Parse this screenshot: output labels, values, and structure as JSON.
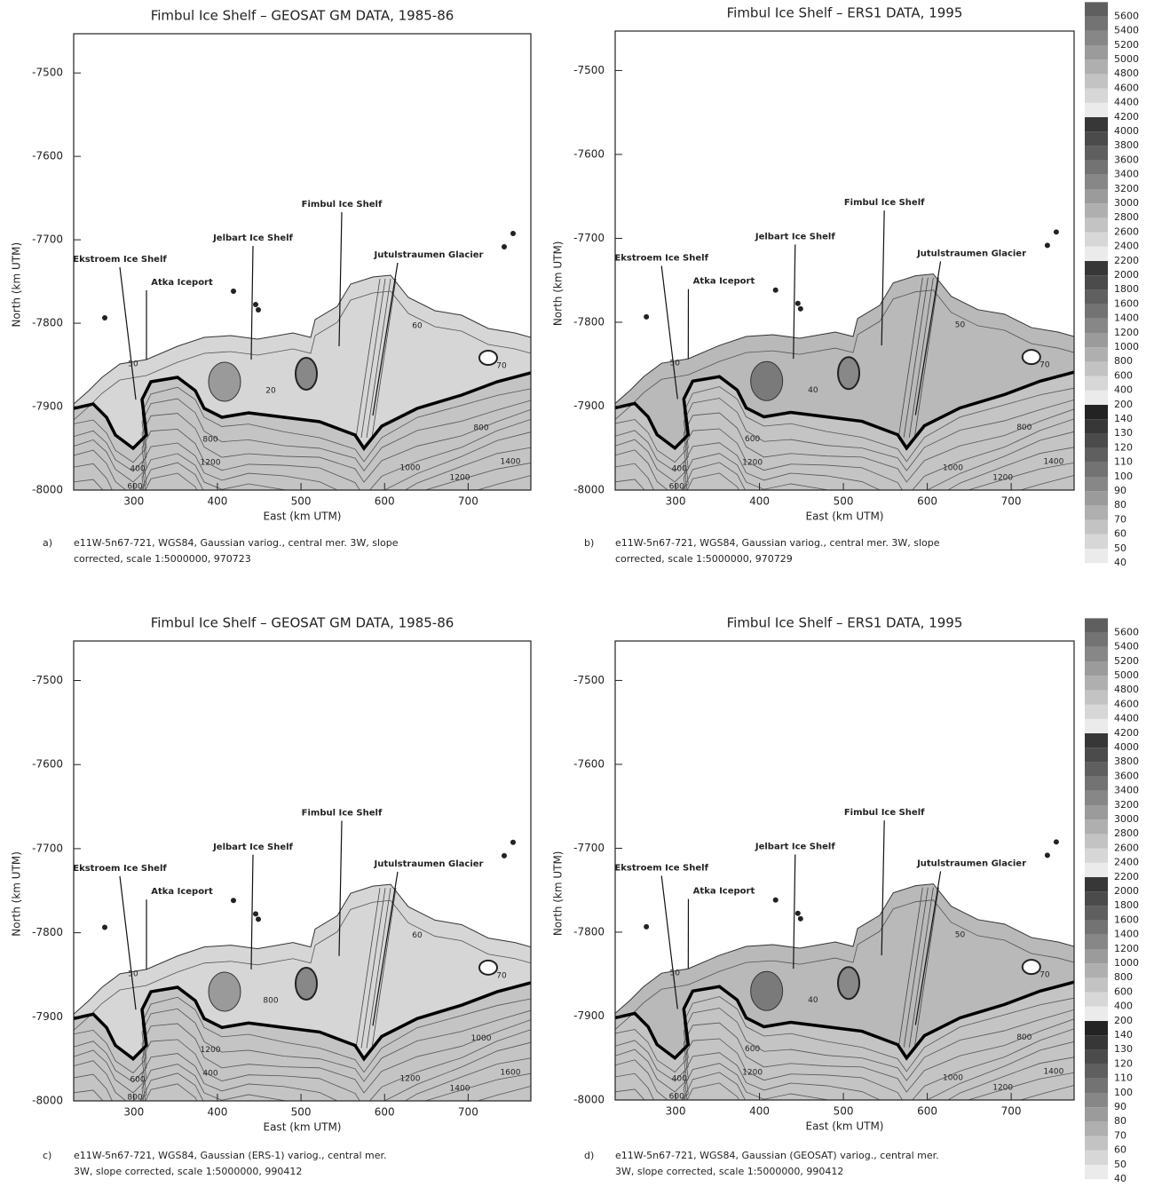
{
  "chart_data": [
    {
      "type": "contour",
      "panel_label": "a)",
      "title": "Fimbul Ice Shelf – GEOSAT GM DATA, 1985-86",
      "xlabel": "East (km UTM)",
      "ylabel": "North (km UTM)",
      "xlim": [
        228,
        775
      ],
      "ylim": [
        -8000,
        -7453
      ],
      "xticks": [
        300,
        400,
        500,
        600,
        700
      ],
      "yticks": [
        -7500,
        -7600,
        -7700,
        -7800,
        -7900,
        -8000
      ],
      "annotations": [
        "Ekstroem Ice Shelf",
        "Atka Iceport",
        "Jelbart Ice Shelf",
        "Fimbul Ice Shelf",
        "Jutulstraumen Glacier"
      ],
      "contour_labels": [
        50,
        60,
        70,
        20,
        800,
        1200,
        400,
        600,
        800,
        1000,
        1200,
        1400
      ],
      "caption": [
        "e11W-5n67-721, WGS84, Gaussian variog., central mer. 3W, slope",
        "corrected, scale 1:5000000, 970723"
      ]
    },
    {
      "type": "contour",
      "panel_label": "b)",
      "title": "Fimbul Ice Shelf – ERS1 DATA, 1995",
      "xlabel": "East (km UTM)",
      "ylabel": "North (km UTM)",
      "xlim": [
        228,
        775
      ],
      "ylim": [
        -8000,
        -7453
      ],
      "xticks": [
        300,
        400,
        500,
        600,
        700
      ],
      "yticks": [
        -7500,
        -7600,
        -7700,
        -7800,
        -7900,
        -8000
      ],
      "annotations": [
        "Ekstroem Ice Shelf",
        "Atka Iceport",
        "Jelbart Ice Shelf",
        "Fimbul Ice Shelf",
        "Jutulstraumen Glacier"
      ],
      "contour_labels": [
        50,
        50,
        70,
        40,
        600,
        1200,
        400,
        600,
        800,
        1000,
        1200,
        1400
      ],
      "caption": [
        "e11W-5n67-721, WGS84, Gaussian variog., central mer. 3W, slope",
        "corrected, scale 1:5000000, 970729"
      ],
      "colorbar_levels": [
        40,
        50,
        60,
        70,
        80,
        90,
        100,
        110,
        120,
        130,
        140,
        200,
        400,
        600,
        800,
        1000,
        1200,
        1400,
        1600,
        1800,
        2000,
        2200,
        2400,
        2600,
        2800,
        3000,
        3200,
        3400,
        3600,
        3800,
        4000,
        4200,
        4400,
        4600,
        4800,
        5000,
        5200,
        5400,
        5600
      ]
    },
    {
      "type": "contour",
      "panel_label": "c)",
      "title": "Fimbul Ice Shelf – GEOSAT GM DATA, 1985-86",
      "xlabel": "East (km UTM)",
      "ylabel": "North (km UTM)",
      "xlim": [
        228,
        775
      ],
      "ylim": [
        -8000,
        -7453
      ],
      "xticks": [
        300,
        400,
        500,
        600,
        700
      ],
      "yticks": [
        -7500,
        -7600,
        -7700,
        -7800,
        -7900,
        -8000
      ],
      "annotations": [
        "Ekstroem Ice Shelf",
        "Atka Iceport",
        "Jelbart Ice Shelf",
        "Fimbul Ice Shelf",
        "Jutulstraumen Glacier"
      ],
      "contour_labels": [
        50,
        60,
        70,
        800,
        1200,
        400,
        600,
        800,
        1000,
        1200,
        1400,
        1600
      ],
      "caption": [
        "e11W-5n67-721, WGS84, Gaussian (ERS-1) variog., central mer.",
        "3W, slope corrected, scale 1:5000000, 990412"
      ]
    },
    {
      "type": "contour",
      "panel_label": "d)",
      "title": "Fimbul Ice Shelf – ERS1 DATA, 1995",
      "xlabel": "East (km UTM)",
      "ylabel": "North (km UTM)",
      "xlim": [
        228,
        775
      ],
      "ylim": [
        -8000,
        -7453
      ],
      "xticks": [
        300,
        400,
        500,
        600,
        700
      ],
      "yticks": [
        -7500,
        -7600,
        -7700,
        -7800,
        -7900,
        -8000
      ],
      "annotations": [
        "Ekstroem Ice Shelf",
        "Atka Iceport",
        "Jelbart Ice Shelf",
        "Fimbul Ice Shelf",
        "Jutulstraumen Glacier"
      ],
      "contour_labels": [
        50,
        50,
        70,
        40,
        600,
        1200,
        400,
        600,
        800,
        1000,
        1200,
        1400
      ],
      "caption": [
        "e11W-5n67-721, WGS84, Gaussian (GEOSAT) variog., central mer.",
        "3W, slope corrected, scale 1:5000000, 990412"
      ],
      "colorbar_levels": [
        40,
        50,
        60,
        70,
        80,
        90,
        100,
        110,
        120,
        130,
        140,
        200,
        400,
        600,
        800,
        1000,
        1200,
        1400,
        1600,
        1800,
        2000,
        2200,
        2400,
        2600,
        2800,
        3000,
        3200,
        3400,
        3600,
        3800,
        4000,
        4200,
        4400,
        4600,
        4800,
        5000,
        5200,
        5400,
        5600
      ]
    }
  ]
}
